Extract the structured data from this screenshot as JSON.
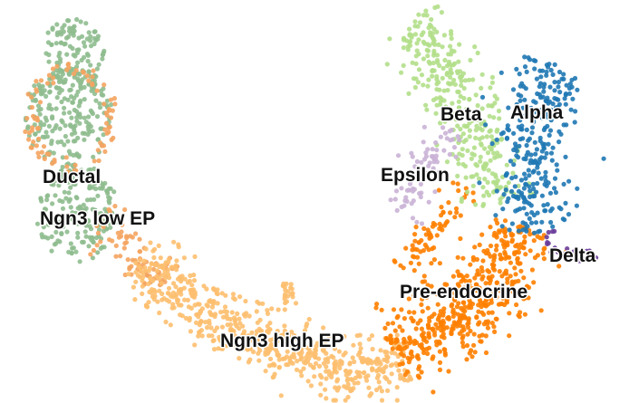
{
  "chart_data": {
    "type": "scatter",
    "title": "",
    "xlabel": "",
    "ylabel": "",
    "legend": "on data",
    "grid": false,
    "axes_visible": false,
    "clusters": [
      {
        "name": "Ductal",
        "color": "#8fbc8f"
      },
      {
        "name": "Ngn3 low EP",
        "color": "#f4a460"
      },
      {
        "name": "Ngn3 high EP",
        "color": "#fdbf6f"
      },
      {
        "name": "Pre-endocrine",
        "color": "#ff7f00"
      },
      {
        "name": "Beta",
        "color": "#b2df8a"
      },
      {
        "name": "Alpha",
        "color": "#1f78b4"
      },
      {
        "name": "Epsilon",
        "color": "#cab2d6"
      },
      {
        "name": "Delta",
        "color": "#6a3d9a"
      }
    ],
    "labels": [
      "Ductal",
      "Ngn3 low EP",
      "Ngn3 high EP",
      "Pre-endocrine",
      "Beta",
      "Alpha",
      "Epsilon",
      "Delta"
    ]
  }
}
